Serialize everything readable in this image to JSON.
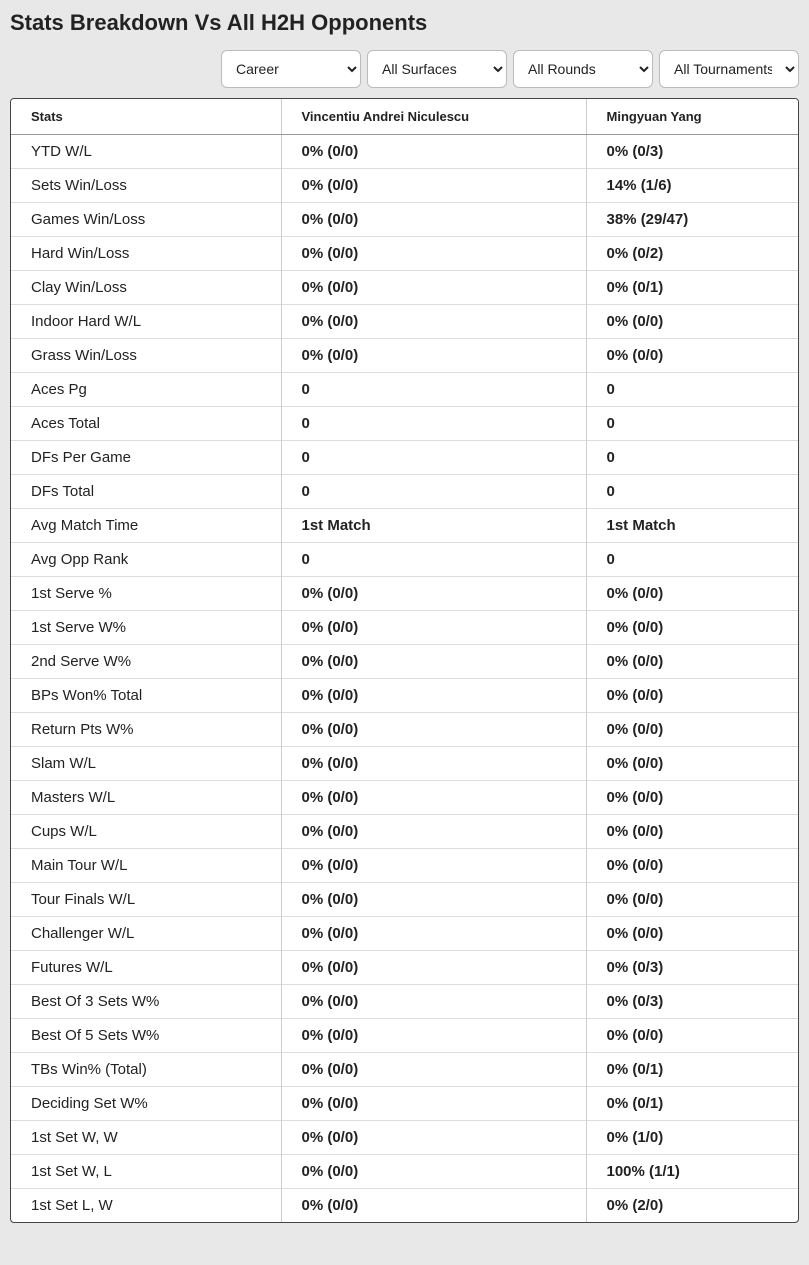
{
  "title": "Stats Breakdown Vs All H2H Opponents",
  "filters": {
    "career": {
      "selected": "Career",
      "options": [
        "Career"
      ]
    },
    "surface": {
      "selected": "All Surfaces",
      "options": [
        "All Surfaces"
      ]
    },
    "round": {
      "selected": "All Rounds",
      "options": [
        "All Rounds"
      ]
    },
    "tournament": {
      "selected": "All Tournaments",
      "options": [
        "All Tournaments"
      ]
    }
  },
  "columns": {
    "c0": "Stats",
    "c1": "Vincentiu Andrei Niculescu",
    "c2": "Mingyuan Yang"
  },
  "rows": [
    {
      "stat": "YTD W/L",
      "p1": "0% (0/0)",
      "p2": "0% (0/3)"
    },
    {
      "stat": "Sets Win/Loss",
      "p1": "0% (0/0)",
      "p2": "14% (1/6)"
    },
    {
      "stat": "Games Win/Loss",
      "p1": "0% (0/0)",
      "p2": "38% (29/47)"
    },
    {
      "stat": "Hard Win/Loss",
      "p1": "0% (0/0)",
      "p2": "0% (0/2)"
    },
    {
      "stat": "Clay Win/Loss",
      "p1": "0% (0/0)",
      "p2": "0% (0/1)"
    },
    {
      "stat": "Indoor Hard W/L",
      "p1": "0% (0/0)",
      "p2": "0% (0/0)"
    },
    {
      "stat": "Grass Win/Loss",
      "p1": "0% (0/0)",
      "p2": "0% (0/0)"
    },
    {
      "stat": "Aces Pg",
      "p1": "0",
      "p2": "0"
    },
    {
      "stat": "Aces Total",
      "p1": "0",
      "p2": "0"
    },
    {
      "stat": "DFs Per Game",
      "p1": "0",
      "p2": "0"
    },
    {
      "stat": "DFs Total",
      "p1": "0",
      "p2": "0"
    },
    {
      "stat": "Avg Match Time",
      "p1": "1st Match",
      "p2": "1st Match"
    },
    {
      "stat": "Avg Opp Rank",
      "p1": "0",
      "p2": "0"
    },
    {
      "stat": "1st Serve %",
      "p1": "0% (0/0)",
      "p2": "0% (0/0)"
    },
    {
      "stat": "1st Serve W%",
      "p1": "0% (0/0)",
      "p2": "0% (0/0)"
    },
    {
      "stat": "2nd Serve W%",
      "p1": "0% (0/0)",
      "p2": "0% (0/0)"
    },
    {
      "stat": "BPs Won% Total",
      "p1": "0% (0/0)",
      "p2": "0% (0/0)"
    },
    {
      "stat": "Return Pts W%",
      "p1": "0% (0/0)",
      "p2": "0% (0/0)"
    },
    {
      "stat": "Slam W/L",
      "p1": "0% (0/0)",
      "p2": "0% (0/0)"
    },
    {
      "stat": "Masters W/L",
      "p1": "0% (0/0)",
      "p2": "0% (0/0)"
    },
    {
      "stat": "Cups W/L",
      "p1": "0% (0/0)",
      "p2": "0% (0/0)"
    },
    {
      "stat": "Main Tour W/L",
      "p1": "0% (0/0)",
      "p2": "0% (0/0)"
    },
    {
      "stat": "Tour Finals W/L",
      "p1": "0% (0/0)",
      "p2": "0% (0/0)"
    },
    {
      "stat": "Challenger W/L",
      "p1": "0% (0/0)",
      "p2": "0% (0/0)"
    },
    {
      "stat": "Futures W/L",
      "p1": "0% (0/0)",
      "p2": "0% (0/3)"
    },
    {
      "stat": "Best Of 3 Sets W%",
      "p1": "0% (0/0)",
      "p2": "0% (0/3)"
    },
    {
      "stat": "Best Of 5 Sets W%",
      "p1": "0% (0/0)",
      "p2": "0% (0/0)"
    },
    {
      "stat": "TBs Win% (Total)",
      "p1": "0% (0/0)",
      "p2": "0% (0/1)"
    },
    {
      "stat": "Deciding Set W%",
      "p1": "0% (0/0)",
      "p2": "0% (0/1)"
    },
    {
      "stat": "1st Set W, W",
      "p1": "0% (0/0)",
      "p2": "0% (1/0)"
    },
    {
      "stat": "1st Set W, L",
      "p1": "0% (0/0)",
      "p2": "100% (1/1)"
    },
    {
      "stat": "1st Set L, W",
      "p1": "0% (0/0)",
      "p2": "0% (2/0)"
    }
  ]
}
